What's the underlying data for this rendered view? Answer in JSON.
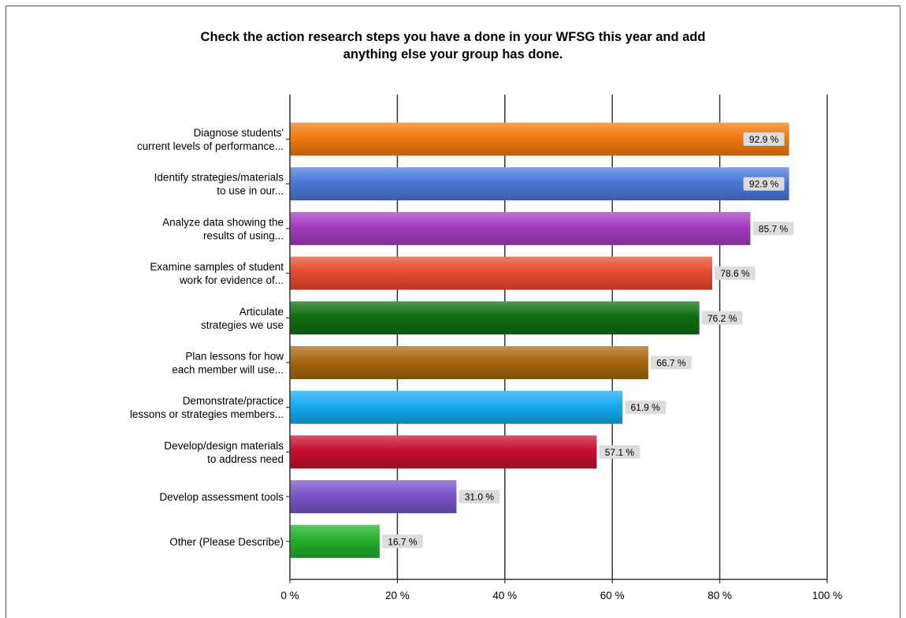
{
  "chart_data": {
    "type": "bar",
    "orientation": "horizontal",
    "title_lines": [
      "Check the action research steps you have a done in your WFSG this year and add",
      "anything else your group has done."
    ],
    "categories": [
      [
        "Diagnose students'",
        "current levels of performance..."
      ],
      [
        "Identify strategies/materials",
        "to use in our..."
      ],
      [
        "Analyze data showing the",
        "results of using..."
      ],
      [
        "Examine samples of student",
        "work for evidence of..."
      ],
      [
        "Articulate",
        "strategies we use"
      ],
      [
        "Plan lessons for how",
        "each member will use..."
      ],
      [
        "Demonstrate/practice",
        "lessons or strategies members..."
      ],
      [
        "Develop/design materials",
        "to address need"
      ],
      [
        "Develop assessment tools"
      ],
      [
        "Other (Please Describe)"
      ]
    ],
    "values": [
      92.9,
      92.9,
      85.7,
      78.6,
      76.2,
      66.7,
      61.9,
      57.1,
      31.0,
      16.7
    ],
    "value_labels": [
      "92.9 %",
      "92.9 %",
      "85.7 %",
      "78.6 %",
      "76.2 %",
      "66.7 %",
      "61.9 %",
      "57.1 %",
      "31.0 %",
      "16.7 %"
    ],
    "colors": [
      "#f07a10",
      "#4a78d8",
      "#a43cc0",
      "#e84a2c",
      "#0e6e12",
      "#a8680e",
      "#15aaee",
      "#c8102e",
      "#7a55c8",
      "#22b02a"
    ],
    "xlim": [
      0,
      100
    ],
    "xticks": [
      "0 %",
      "20 %",
      "40 %",
      "60 %",
      "80 %",
      "100 %"
    ],
    "xtick_values": [
      0,
      20,
      40,
      60,
      80,
      100
    ],
    "grid": true,
    "legend": "none"
  }
}
